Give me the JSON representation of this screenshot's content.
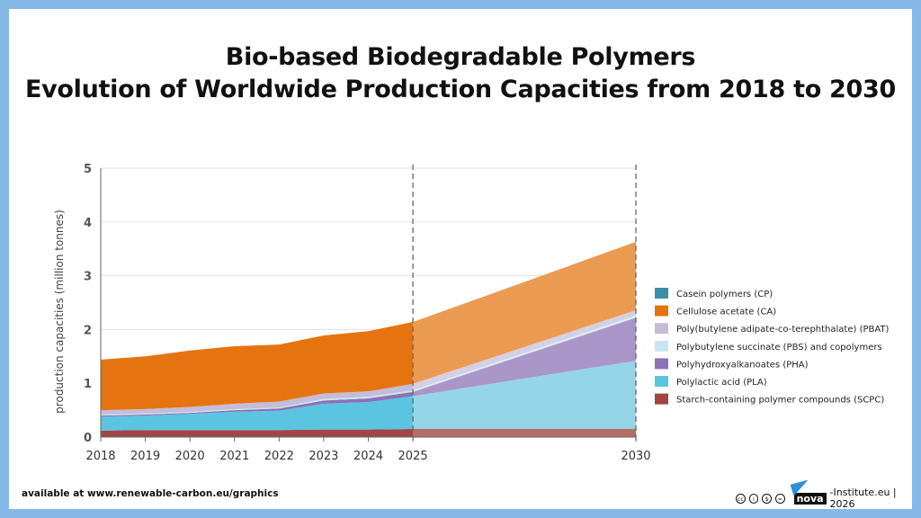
{
  "chart_data": {
    "type": "area",
    "title": "Bio-based Biodegradable Polymers",
    "subtitle": "Evolution of Worldwide Production Capacities from 2018 to 2030",
    "ylabel": "production capacities (million tonnes)",
    "xlabel": "",
    "ylim": [
      0,
      5
    ],
    "yticks": [
      "0",
      "1",
      "2",
      "3",
      "4",
      "5"
    ],
    "x": [
      2018,
      2019,
      2020,
      2021,
      2022,
      2023,
      2024,
      2025,
      2030
    ],
    "xticks": [
      "2018",
      "2019",
      "2020",
      "2021",
      "2022",
      "2023",
      "2024",
      "2025",
      "2030"
    ],
    "stacked": true,
    "projection_from": 2025,
    "legend_placement": "right",
    "series": [
      {
        "name": "Starch-containing polymer compounds (SCPC)",
        "color": "#a24545",
        "color_projected": "#b56e66",
        "values": [
          0.12,
          0.13,
          0.13,
          0.13,
          0.13,
          0.14,
          0.14,
          0.15,
          0.15
        ]
      },
      {
        "name": "Polylactic acid (PLA)",
        "color": "#5bc4e0",
        "color_projected": "#94d5e7",
        "values": [
          0.26,
          0.27,
          0.3,
          0.34,
          0.36,
          0.48,
          0.51,
          0.61,
          1.27
        ]
      },
      {
        "name": "Polyhydroxyalkanoates (PHA)",
        "color": "#8e70b5",
        "color_projected": "#a995c8",
        "values": [
          0.02,
          0.02,
          0.02,
          0.03,
          0.04,
          0.06,
          0.07,
          0.08,
          0.8
        ]
      },
      {
        "name": "Polybutylene succinate (PBS) and copolymers",
        "color": "#c5e6ef",
        "color_projected": "#d6eef5",
        "values": [
          0.02,
          0.02,
          0.02,
          0.02,
          0.02,
          0.03,
          0.03,
          0.03,
          0.04
        ]
      },
      {
        "name": "Poly(butylene adipate-co-terephthalate) (PBAT)",
        "color": "#c4bcd8",
        "color_projected": "#d5cfe3",
        "values": [
          0.08,
          0.08,
          0.09,
          0.1,
          0.11,
          0.1,
          0.1,
          0.12,
          0.1
        ]
      },
      {
        "name": "Cellulose acetate (CA)",
        "color": "#e57410",
        "color_projected": "#eb9a52",
        "values": [
          0.94,
          0.98,
          1.05,
          1.07,
          1.06,
          1.08,
          1.12,
          1.15,
          1.27
        ]
      },
      {
        "name": "Casein polymers (CP)",
        "color": "#3a8fa8",
        "color_projected": "#6aaabd",
        "values": [
          0,
          0,
          0,
          0,
          0,
          0,
          0,
          0,
          0
        ]
      }
    ],
    "grid": "horizontal"
  },
  "footer": {
    "source": "available at www.renewable-carbon.eu/graphics",
    "logo": "nova",
    "credit": "-Institute.eu | 2026"
  }
}
